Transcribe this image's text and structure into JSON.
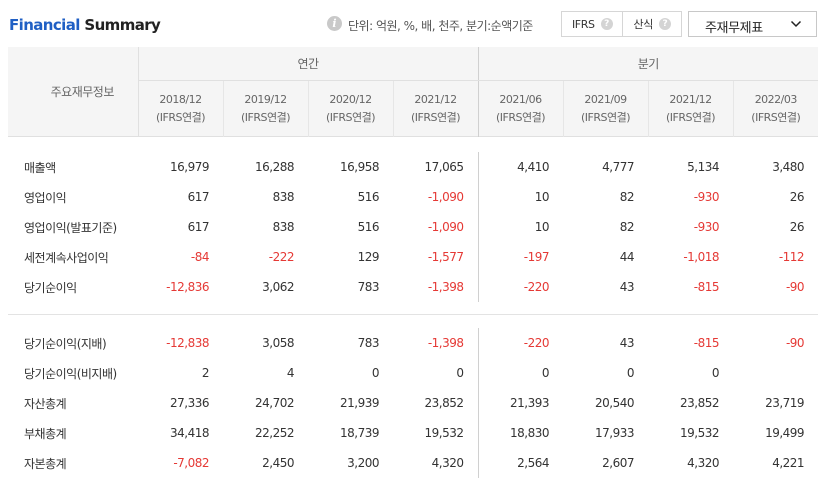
{
  "header": {
    "title_part1": "Financial",
    "title_part2": "Summary",
    "info_icon": "i",
    "unit_text": "단위: 억원, %, 배, 천주, 분기:순액기준",
    "options": [
      {
        "label": "IFRS",
        "help": "?"
      },
      {
        "label": "산식",
        "help": "?"
      }
    ],
    "select_label": "주재무제표"
  },
  "table": {
    "row_header": "주요재무정보",
    "group_annual": "연간",
    "group_quarter": "분기",
    "columns": [
      {
        "period": "2018/12",
        "basis": "(IFRS연결)"
      },
      {
        "period": "2019/12",
        "basis": "(IFRS연결)"
      },
      {
        "period": "2020/12",
        "basis": "(IFRS연결)"
      },
      {
        "period": "2021/12",
        "basis": "(IFRS연결)"
      },
      {
        "period": "2021/06",
        "basis": "(IFRS연결)"
      },
      {
        "period": "2021/09",
        "basis": "(IFRS연결)"
      },
      {
        "period": "2021/12",
        "basis": "(IFRS연결)"
      },
      {
        "period": "2022/03",
        "basis": "(IFRS연결)"
      }
    ],
    "section1": [
      {
        "label": "매출액",
        "values": [
          "16,979",
          "16,288",
          "16,958",
          "17,065",
          "4,410",
          "4,777",
          "5,134",
          "3,480"
        ]
      },
      {
        "label": "영업이익",
        "values": [
          "617",
          "838",
          "516",
          "-1,090",
          "10",
          "82",
          "-930",
          "26"
        ]
      },
      {
        "label": "영업이익(발표기준)",
        "values": [
          "617",
          "838",
          "516",
          "-1,090",
          "10",
          "82",
          "-930",
          "26"
        ]
      },
      {
        "label": "세전계속사업이익",
        "values": [
          "-84",
          "-222",
          "129",
          "-1,577",
          "-197",
          "44",
          "-1,018",
          "-112"
        ]
      },
      {
        "label": "당기순이익",
        "values": [
          "-12,836",
          "3,062",
          "783",
          "-1,398",
          "-220",
          "43",
          "-815",
          "-90"
        ]
      }
    ],
    "section2": [
      {
        "label": "당기순이익(지배)",
        "values": [
          "-12,838",
          "3,058",
          "783",
          "-1,398",
          "-220",
          "43",
          "-815",
          "-90"
        ]
      },
      {
        "label": "당기순이익(비지배)",
        "values": [
          "2",
          "4",
          "0",
          "0",
          "0",
          "0",
          "0",
          ""
        ]
      },
      {
        "label": "자산총계",
        "values": [
          "27,336",
          "24,702",
          "21,939",
          "23,852",
          "21,393",
          "20,540",
          "23,852",
          "23,719"
        ]
      },
      {
        "label": "부채총계",
        "values": [
          "34,418",
          "22,252",
          "18,739",
          "19,532",
          "18,830",
          "17,933",
          "19,532",
          "19,499"
        ]
      },
      {
        "label": "자본총계",
        "values": [
          "-7,082",
          "2,450",
          "3,200",
          "4,320",
          "2,564",
          "2,607",
          "4,320",
          "4,221"
        ]
      }
    ]
  }
}
